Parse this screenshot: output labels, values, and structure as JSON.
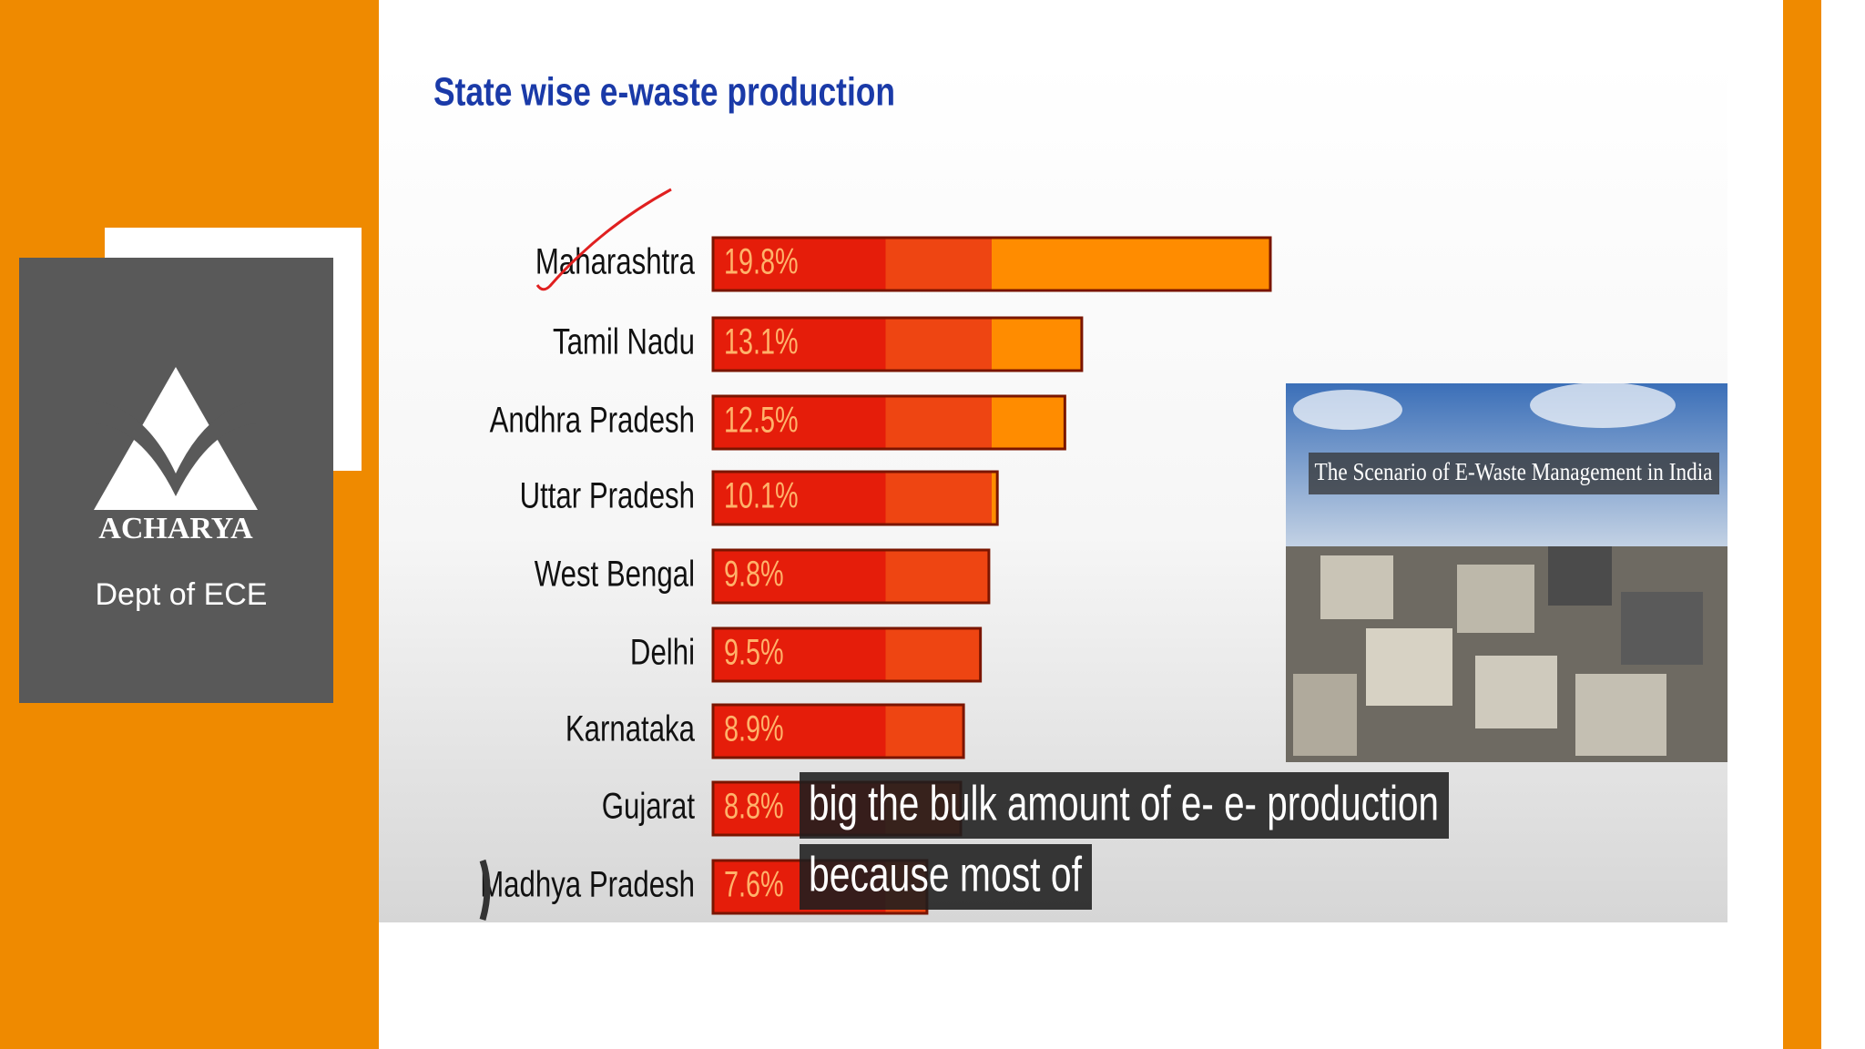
{
  "branding": {
    "logo": "ACHARYA",
    "department": "Dept of ECE"
  },
  "video": {
    "image_caption": "The Scenario of E-Waste Management in India",
    "subtitles": [
      "big the bulk amount of e- e- production",
      "because most of"
    ]
  },
  "chart_data": {
    "type": "bar",
    "orientation": "horizontal",
    "title": "State wise e-waste production",
    "categories": [
      "Maharashtra",
      "Tamil Nadu",
      "Andhra Pradesh",
      "Uttar Pradesh",
      "West Bengal",
      "Delhi",
      "Karnataka",
      "Gujarat",
      "Madhya Pradesh"
    ],
    "values": [
      19.8,
      13.1,
      12.5,
      10.1,
      9.8,
      9.5,
      8.9,
      8.8,
      7.6
    ],
    "value_labels": [
      "19.8%",
      "13.1%",
      "12.5%",
      "10.1%",
      "9.8%",
      "9.5%",
      "8.9%",
      "8.8%",
      "7.6%"
    ],
    "colors": [
      "#e51d0a",
      "#ee4512",
      "#ff8c00"
    ]
  }
}
